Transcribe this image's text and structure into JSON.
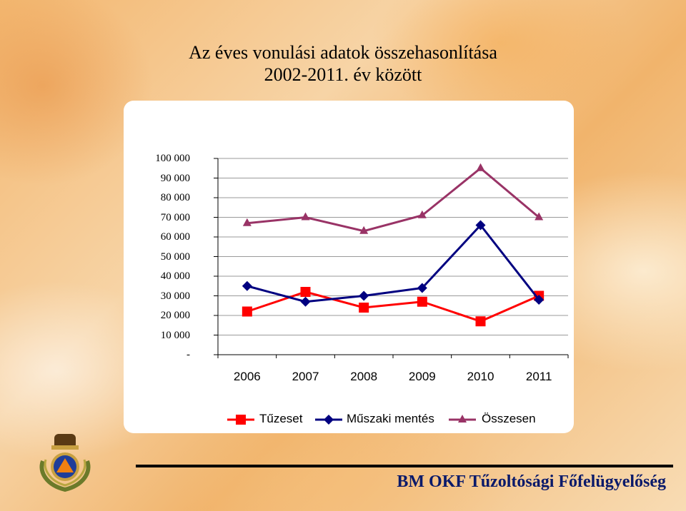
{
  "slide": {
    "title_line1": "Az éves vonulási adatok összehasonlítása",
    "title_line2": "2002-2011. év között",
    "footer": "BM OKF Tűzoltósági Főfelügyelőség"
  },
  "colors": {
    "tuzeset": "#ff0000",
    "muszaki": "#000080",
    "osszesen": "#993366",
    "footer_text": "#0a1a6a"
  },
  "icons": {
    "logo": "fire-department-emblem-icon"
  },
  "chart_data": {
    "type": "line",
    "categories": [
      "2006",
      "2007",
      "2008",
      "2009",
      "2010",
      "2011"
    ],
    "y_tick_labels": [
      "100 000",
      "90 000",
      "80 000",
      "70 000",
      "60 000",
      "50 000",
      "40 000",
      "30 000",
      "20 000",
      "10 000",
      "-"
    ],
    "ylim": [
      0,
      100000
    ],
    "grid": true,
    "legend_position": "bottom",
    "series": [
      {
        "name": "Tűzeset",
        "marker": "square",
        "color": "#ff0000",
        "values": [
          22000,
          32000,
          24000,
          27000,
          17000,
          30000
        ]
      },
      {
        "name": "Műszaki mentés",
        "marker": "diamond",
        "color": "#000080",
        "values": [
          35000,
          27000,
          30000,
          34000,
          66000,
          28000
        ]
      },
      {
        "name": "Összesen",
        "marker": "triangle",
        "color": "#993366",
        "values": [
          67000,
          70000,
          63000,
          71000,
          95000,
          70000
        ]
      }
    ]
  }
}
